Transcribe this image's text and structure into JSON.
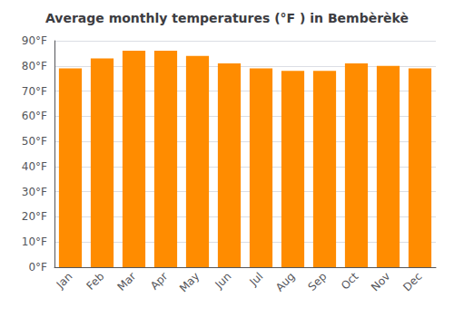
{
  "chart_data": {
    "type": "bar",
    "title": "Average monthly temperatures (°F ) in Bembèrèkè",
    "categories": [
      "Jan",
      "Feb",
      "Mar",
      "Apr",
      "May",
      "Jun",
      "Jul",
      "Aug",
      "Sep",
      "Oct",
      "Nov",
      "Dec"
    ],
    "values": [
      79,
      83,
      86,
      86,
      84,
      81,
      79,
      78,
      78,
      81,
      80,
      79
    ],
    "color": "#ff8c00",
    "ylim": [
      0,
      90
    ],
    "yticks": [
      {
        "value": 0,
        "label": "0°F"
      },
      {
        "value": 10,
        "label": "10°F"
      },
      {
        "value": 20,
        "label": "20°F"
      },
      {
        "value": 30,
        "label": "30°F"
      },
      {
        "value": 40,
        "label": "40°F"
      },
      {
        "value": 50,
        "label": "50°F"
      },
      {
        "value": 60,
        "label": "60°F"
      },
      {
        "value": 70,
        "label": "70°F"
      },
      {
        "value": 80,
        "label": "80°F"
      },
      {
        "value": 90,
        "label": "90°F"
      }
    ],
    "grid": true
  }
}
